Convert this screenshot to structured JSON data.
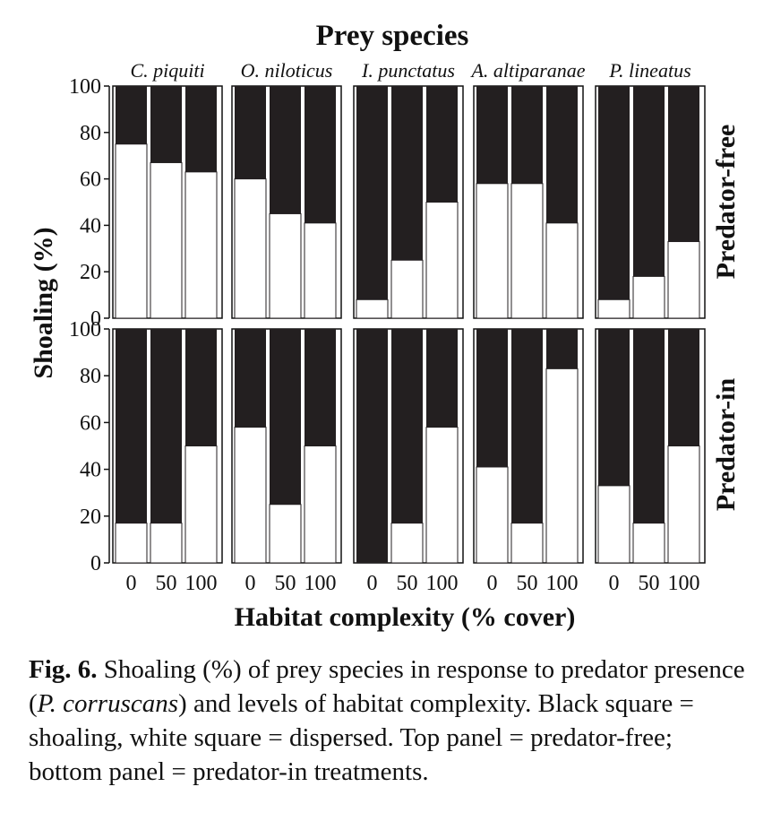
{
  "chart_data": {
    "type": "bar",
    "stacked": true,
    "title": "Prey species",
    "ylabel": "Shoaling (%)",
    "xlabel": "Habitat complexity (% cover)",
    "ylim": [
      0,
      100
    ],
    "yticks": [
      "0",
      "20",
      "40",
      "60",
      "80",
      "100"
    ],
    "xtick_labels": [
      "0",
      "50",
      "100"
    ],
    "species": [
      "C. piquiti",
      "O. niloticus",
      "I. punctatus",
      "A. altiparanae",
      "P. lineatus"
    ],
    "rows": [
      "Predator-free",
      "Predator-in"
    ],
    "legend": {
      "shoaling": "black",
      "dispersed": "white"
    },
    "dispersed": {
      "Predator-free": [
        [
          75,
          67,
          63
        ],
        [
          60,
          45,
          41
        ],
        [
          8,
          25,
          50
        ],
        [
          58,
          58,
          41
        ],
        [
          8,
          18,
          33
        ]
      ],
      "Predator-in": [
        [
          17,
          17,
          50
        ],
        [
          58,
          25,
          50
        ],
        [
          0,
          17,
          58
        ],
        [
          41,
          17,
          83
        ],
        [
          33,
          17,
          50
        ]
      ]
    }
  },
  "caption": {
    "label": "Fig. 6.",
    "part1": " Shoaling (%) of prey species in response to predator presence (",
    "predator": "P. corruscans",
    "part2": ") and levels of habitat complexity. Black square = shoaling, white square = dispersed. Top panel = predator-free; bottom panel = predator-in treatments."
  }
}
